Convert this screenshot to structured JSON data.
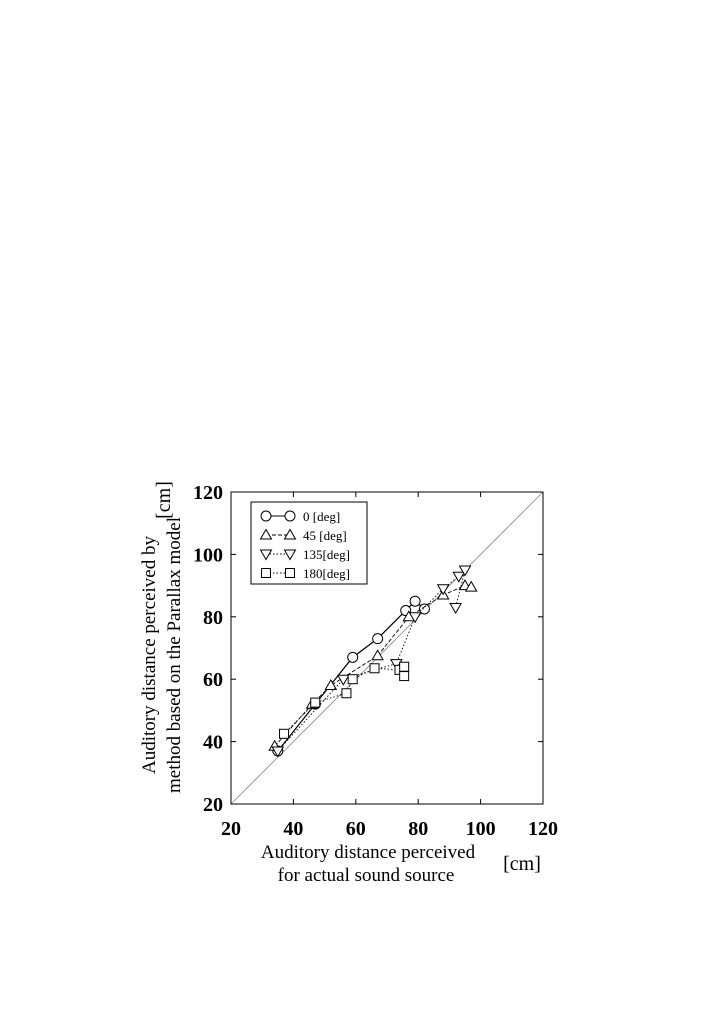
{
  "chart_data": {
    "type": "line",
    "xlabel_line1": "Auditory distance perceived",
    "xlabel_line2": "for actual sound source",
    "xunit": "[cm]",
    "ylabel_line1": "Auditory distance perceived by",
    "ylabel_line2": "method based on the Parallax model",
    "yunit": "[cm]",
    "xlim": [
      20,
      120
    ],
    "ylim": [
      20,
      120
    ],
    "xticks": [
      "20",
      "40",
      "60",
      "80",
      "100",
      "120"
    ],
    "yticks": [
      "20",
      "40",
      "60",
      "80",
      "100",
      "120"
    ],
    "legend_position": "top-left",
    "reference_line": "y = x",
    "series": [
      {
        "name": "0 [deg]",
        "marker": "circle",
        "line": "solid",
        "points": [
          [
            35,
            37
          ],
          [
            47,
            52
          ],
          [
            59,
            67
          ],
          [
            67,
            73
          ],
          [
            76,
            82
          ],
          [
            79,
            85
          ],
          [
            82,
            82.5
          ]
        ]
      },
      {
        "name": "45 [deg]",
        "marker": "triangle-up",
        "line": "dashed",
        "points": [
          [
            34,
            38.5
          ],
          [
            46,
            52
          ],
          [
            52,
            58
          ],
          [
            67,
            67.5
          ],
          [
            77,
            80
          ],
          [
            88,
            87
          ],
          [
            95,
            90
          ],
          [
            97,
            89.5
          ]
        ]
      },
      {
        "name": "135[deg]",
        "marker": "triangle-down",
        "line": "dotted",
        "points": [
          [
            35,
            37
          ],
          [
            56,
            60
          ],
          [
            73,
            65
          ],
          [
            79,
            80
          ],
          [
            88,
            89
          ],
          [
            93,
            93
          ],
          [
            95,
            95
          ],
          [
            92,
            83
          ]
        ]
      },
      {
        "name": "180[deg]",
        "marker": "square",
        "line": "dotted",
        "points": [
          [
            37,
            42.5
          ],
          [
            47,
            52.5
          ],
          [
            57,
            55.5
          ],
          [
            59,
            60
          ],
          [
            66,
            63.5
          ],
          [
            74,
            63
          ],
          [
            75.5,
            64
          ],
          [
            75.5,
            61
          ]
        ]
      }
    ]
  }
}
